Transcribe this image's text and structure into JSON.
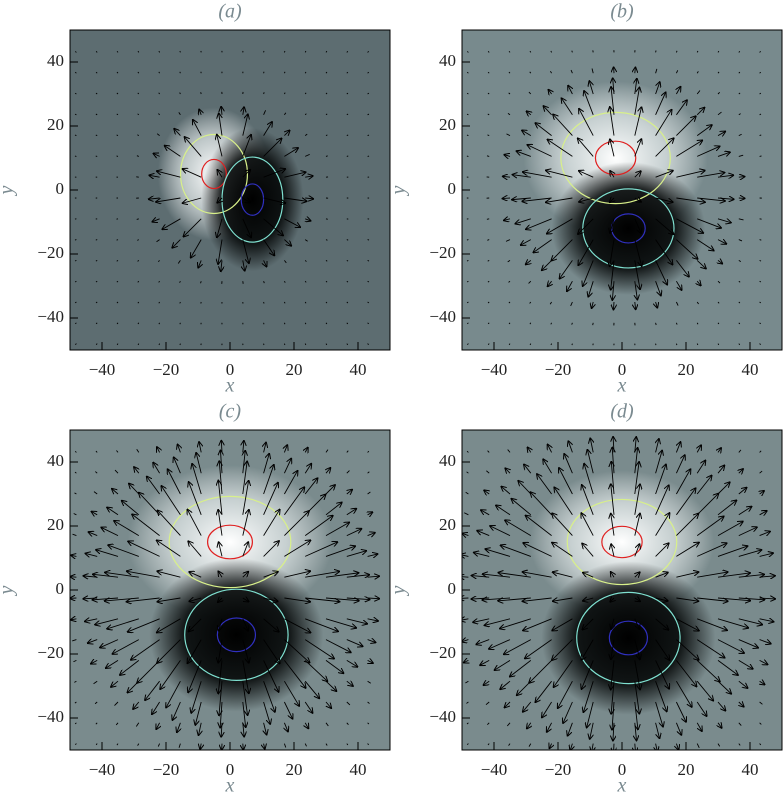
{
  "chart_data": [
    {
      "type": "field",
      "title": "(a)",
      "xlabel": "x",
      "ylabel": "y",
      "xlim": [
        -50,
        50
      ],
      "ylim": [
        -50,
        50
      ],
      "xticks": [
        {
          "value": -40,
          "label": "−40"
        },
        {
          "value": -20,
          "label": "−20"
        },
        0,
        20,
        40
      ],
      "yticks": [
        {
          "value": -40,
          "label": "−40"
        },
        {
          "value": -20,
          "label": "−20"
        },
        0,
        20,
        40
      ]
    },
    {
      "type": "field",
      "title": "(b)",
      "xlabel": "x",
      "ylabel": "y",
      "xlim": [
        -50,
        50
      ],
      "ylim": [
        -50,
        50
      ],
      "xticks": [
        {
          "value": -40,
          "label": "−40"
        },
        {
          "value": -20,
          "label": "−20"
        },
        0,
        20,
        40
      ],
      "yticks": [
        {
          "value": -40,
          "label": "−40"
        },
        {
          "value": -20,
          "label": "−20"
        },
        0,
        20,
        40
      ]
    },
    {
      "type": "field",
      "title": "(c)",
      "xlabel": "x",
      "ylabel": "y",
      "xlim": [
        -50,
        50
      ],
      "ylim": [
        -50,
        50
      ],
      "xticks": [
        {
          "value": -40,
          "label": "−40"
        },
        {
          "value": -20,
          "label": "−20"
        },
        0,
        20,
        40
      ],
      "yticks": [
        {
          "value": -40,
          "label": "−40"
        },
        {
          "value": -20,
          "label": "−20"
        },
        0,
        20,
        40
      ]
    },
    {
      "type": "field",
      "title": "(d)",
      "xlabel": "x",
      "ylabel": "y",
      "xlim": [
        -50,
        50
      ],
      "ylim": [
        -50,
        50
      ],
      "xticks": [
        {
          "value": -40,
          "label": "−40"
        },
        {
          "value": -20,
          "label": "−20"
        },
        0,
        20,
        40
      ],
      "yticks": [
        {
          "value": -40,
          "label": "−40"
        },
        {
          "value": -20,
          "label": "−20"
        },
        0,
        20,
        40
      ]
    }
  ]
}
